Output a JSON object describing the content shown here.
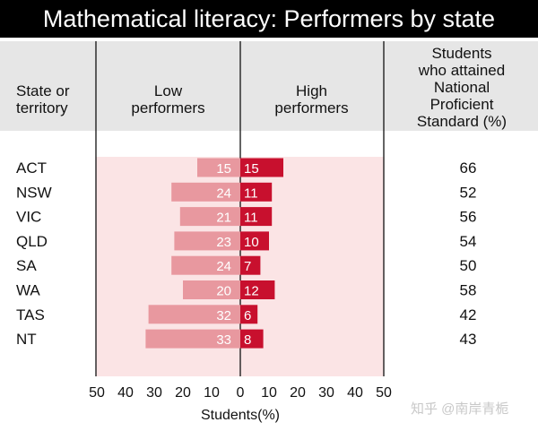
{
  "title": "Mathematical literacy: Performers by state",
  "headers": {
    "state": [
      "State or",
      "territory"
    ],
    "low": [
      "Low",
      "performers"
    ],
    "high": [
      "High",
      "performers"
    ],
    "standard": [
      "Students",
      "who attained",
      "National",
      "Proficient",
      "Standard (%)"
    ]
  },
  "chart_data": {
    "type": "bar",
    "categories": [
      "ACT",
      "NSW",
      "VIC",
      "QLD",
      "SA",
      "WA",
      "TAS",
      "NT"
    ],
    "series": [
      {
        "name": "Low performers",
        "values": [
          15,
          24,
          21,
          23,
          24,
          20,
          32,
          33
        ]
      },
      {
        "name": "High performers",
        "values": [
          15,
          11,
          11,
          10,
          7,
          12,
          6,
          8
        ]
      }
    ],
    "standard_pct": [
      66,
      52,
      56,
      54,
      50,
      58,
      42,
      43
    ],
    "xlabel": "Students(%)",
    "xlim": [
      -50,
      50
    ],
    "xticks": [
      "50",
      "40",
      "30",
      "20",
      "10",
      "0",
      "10",
      "20",
      "30",
      "40",
      "50"
    ],
    "colors": {
      "low": "#e8989f",
      "high": "#c8102e",
      "panel": "#fbe4e5",
      "header": "#e6e6e6"
    }
  },
  "watermark": "知乎 @南岸青栀"
}
